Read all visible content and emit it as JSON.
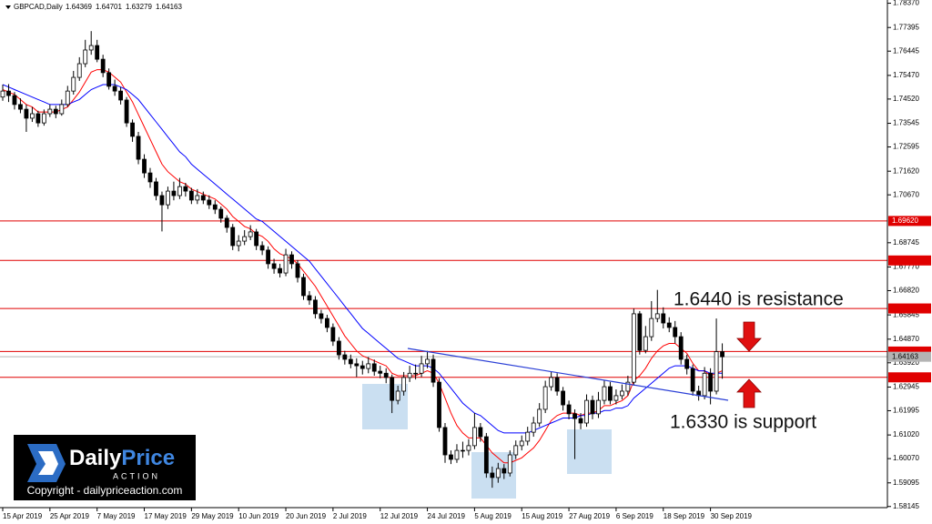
{
  "chart_data": {
    "type": "candlestick",
    "symbol": "GBPCAD,Daily",
    "bull_color": "#ffffff",
    "bear_color": "#000000",
    "ylim": [
      1.581,
      1.785
    ],
    "yticks": [
      {
        "value": 1.7837,
        "label": "1.78370"
      },
      1.77395,
      1.76445,
      {
        "value": 1.7547,
        "label": "1.75470"
      },
      {
        "value": 1.7452,
        "label": "1.74520"
      },
      1.73545,
      1.72595,
      {
        "value": 1.7162,
        "label": "1.71620"
      },
      {
        "value": 1.7067,
        "label": "1.70670"
      },
      1.68745,
      {
        "value": 1.6777,
        "label": "1.67770"
      },
      {
        "value": 1.6682,
        "label": "1.66820"
      },
      1.65845,
      {
        "value": 1.6487,
        "label": "1.64870"
      },
      {
        "value": 1.6392,
        "label": "1.63920"
      },
      1.62945,
      1.61995,
      {
        "value": 1.6102,
        "label": "1.61020"
      },
      {
        "value": 1.6007,
        "label": "1.60070"
      },
      1.59095,
      1.58145
    ],
    "categories": [
      "15 Apr 2019",
      null,
      null,
      null,
      null,
      null,
      null,
      null,
      "25 Apr 2019",
      null,
      null,
      null,
      null,
      null,
      null,
      null,
      "7 May 2019",
      null,
      null,
      null,
      null,
      null,
      null,
      null,
      "17 May 2019",
      null,
      null,
      null,
      null,
      null,
      null,
      null,
      "29 May 2019",
      null,
      null,
      null,
      null,
      null,
      null,
      null,
      "10 Jun 2019",
      null,
      null,
      null,
      null,
      null,
      null,
      null,
      "20 Jun 2019",
      null,
      null,
      null,
      null,
      null,
      null,
      null,
      "2 Jul 2019",
      null,
      null,
      null,
      null,
      null,
      null,
      null,
      "12 Jul 2019",
      null,
      null,
      null,
      null,
      null,
      null,
      null,
      "24 Jul 2019",
      null,
      null,
      null,
      null,
      null,
      null,
      null,
      "5 Aug 2019",
      null,
      null,
      null,
      null,
      null,
      null,
      null,
      "15 Aug 2019",
      null,
      null,
      null,
      null,
      null,
      null,
      null,
      "27 Aug 2019",
      null,
      null,
      null,
      null,
      null,
      null,
      null,
      "6 Sep 2019",
      null,
      null,
      null,
      null,
      null,
      null,
      null,
      "18 Sep 2019",
      null,
      null,
      null,
      null,
      null,
      null,
      null,
      "30 Sep 2019",
      null,
      null
    ],
    "ohlc": [
      [
        1.746,
        1.751,
        1.7445,
        1.7484
      ],
      [
        1.7484,
        1.7512,
        1.744,
        1.7466
      ],
      [
        1.7466,
        1.748,
        1.741,
        1.743
      ],
      [
        1.743,
        1.7455,
        1.7395,
        1.7411
      ],
      [
        1.7411,
        1.743,
        1.732,
        1.7375
      ],
      [
        1.7375,
        1.742,
        1.736,
        1.7393
      ],
      [
        1.7393,
        1.7405,
        1.734,
        1.7356
      ],
      [
        1.7356,
        1.741,
        1.7345,
        1.7393
      ],
      [
        1.7393,
        1.743,
        1.738,
        1.7411
      ],
      [
        1.7411,
        1.7425,
        1.7375,
        1.7393
      ],
      [
        1.7393,
        1.745,
        1.7385,
        1.743
      ],
      [
        1.743,
        1.7505,
        1.742,
        1.7484
      ],
      [
        1.7484,
        1.7565,
        1.747,
        1.7539
      ],
      [
        1.7539,
        1.762,
        1.7525,
        1.7594
      ],
      [
        1.7594,
        1.769,
        1.758,
        1.7649
      ],
      [
        1.7649,
        1.7725,
        1.763,
        1.7667
      ],
      [
        1.7667,
        1.769,
        1.76,
        1.7612
      ],
      [
        1.7612,
        1.763,
        1.754,
        1.7558
      ],
      [
        1.7558,
        1.7575,
        1.749,
        1.7503
      ],
      [
        1.7503,
        1.753,
        1.7465,
        1.7484
      ],
      [
        1.7484,
        1.75,
        1.743,
        1.7448
      ],
      [
        1.7448,
        1.746,
        1.734,
        1.7356
      ],
      [
        1.7356,
        1.737,
        1.728,
        1.7302
      ],
      [
        1.7302,
        1.732,
        1.719,
        1.721
      ],
      [
        1.721,
        1.723,
        1.7135,
        1.7155
      ],
      [
        1.7155,
        1.7175,
        1.7095,
        1.7119
      ],
      [
        1.7119,
        1.7135,
        1.7045,
        1.7064
      ],
      [
        1.7064,
        1.708,
        1.692,
        1.7027
      ],
      [
        1.7027,
        1.71,
        1.701,
        1.7082
      ],
      [
        1.7082,
        1.712,
        1.7045,
        1.7064
      ],
      [
        1.7064,
        1.7135,
        1.705,
        1.71
      ],
      [
        1.71,
        1.7115,
        1.706,
        1.7082
      ],
      [
        1.7082,
        1.7095,
        1.703,
        1.7046
      ],
      [
        1.7046,
        1.709,
        1.703,
        1.7064
      ],
      [
        1.7064,
        1.708,
        1.703,
        1.7046
      ],
      [
        1.7046,
        1.7065,
        1.701,
        1.7027
      ],
      [
        1.7027,
        1.7045,
        1.699,
        1.7009
      ],
      [
        1.7009,
        1.702,
        1.6955,
        1.6973
      ],
      [
        1.6973,
        1.6985,
        1.6915,
        1.6936
      ],
      [
        1.6936,
        1.695,
        1.6845,
        1.6863
      ],
      [
        1.6863,
        1.6905,
        1.684,
        1.6881
      ],
      [
        1.6881,
        1.6925,
        1.6865,
        1.6899
      ],
      [
        1.6899,
        1.6945,
        1.6885,
        1.6918
      ],
      [
        1.6918,
        1.693,
        1.6845,
        1.6863
      ],
      [
        1.6863,
        1.688,
        1.6825,
        1.6845
      ],
      [
        1.6845,
        1.686,
        1.677,
        1.679
      ],
      [
        1.679,
        1.681,
        1.675,
        1.6771
      ],
      [
        1.6771,
        1.679,
        1.6735,
        1.6753
      ],
      [
        1.6753,
        1.685,
        1.674,
        1.6826
      ],
      [
        1.6826,
        1.684,
        1.677,
        1.679
      ],
      [
        1.679,
        1.6805,
        1.6715,
        1.6735
      ],
      [
        1.6735,
        1.675,
        1.6645,
        1.6662
      ],
      [
        1.6662,
        1.668,
        1.6625,
        1.6644
      ],
      [
        1.6644,
        1.666,
        1.657,
        1.6589
      ],
      [
        1.6589,
        1.6605,
        1.655,
        1.657
      ],
      [
        1.657,
        1.6585,
        1.6515,
        1.6534
      ],
      [
        1.6534,
        1.655,
        1.646,
        1.6479
      ],
      [
        1.6479,
        1.6495,
        1.6405,
        1.6424
      ],
      [
        1.6424,
        1.644,
        1.6385,
        1.6406
      ],
      [
        1.6406,
        1.6425,
        1.637,
        1.6388
      ],
      [
        1.6388,
        1.641,
        1.6335,
        1.638
      ],
      [
        1.638,
        1.64,
        1.6345,
        1.6369
      ],
      [
        1.6369,
        1.6415,
        1.635,
        1.6388
      ],
      [
        1.6388,
        1.6405,
        1.634,
        1.6358
      ],
      [
        1.6358,
        1.638,
        1.633,
        1.635
      ],
      [
        1.635,
        1.637,
        1.631,
        1.6333
      ],
      [
        1.6333,
        1.6345,
        1.619,
        1.6241
      ],
      [
        1.6241,
        1.63,
        1.6225,
        1.6278
      ],
      [
        1.6278,
        1.6355,
        1.626,
        1.6333
      ],
      [
        1.6333,
        1.638,
        1.6315,
        1.635
      ],
      [
        1.635,
        1.6385,
        1.6325,
        1.635
      ],
      [
        1.635,
        1.642,
        1.6335,
        1.6388
      ],
      [
        1.6388,
        1.644,
        1.637,
        1.6406
      ],
      [
        1.6406,
        1.6425,
        1.6295,
        1.6314
      ],
      [
        1.6314,
        1.633,
        1.6115,
        1.6132
      ],
      [
        1.6132,
        1.615,
        1.599,
        1.6022
      ],
      [
        1.6022,
        1.604,
        1.5985,
        1.6004
      ],
      [
        1.6004,
        1.6065,
        1.599,
        1.604
      ],
      [
        1.604,
        1.6075,
        1.601,
        1.604
      ],
      [
        1.604,
        1.6085,
        1.602,
        1.6059
      ],
      [
        1.6059,
        1.619,
        1.6045,
        1.6132
      ],
      [
        1.6132,
        1.615,
        1.6075,
        1.6095
      ],
      [
        1.6095,
        1.611,
        1.593,
        1.5949
      ],
      [
        1.5949,
        1.5975,
        1.589,
        1.5931
      ],
      [
        1.5931,
        1.599,
        1.591,
        1.5967
      ],
      [
        1.5967,
        1.5985,
        1.5925,
        1.5949
      ],
      [
        1.5949,
        1.604,
        1.5935,
        1.6022
      ],
      [
        1.6022,
        1.608,
        1.6005,
        1.6059
      ],
      [
        1.6059,
        1.61,
        1.604,
        1.6077
      ],
      [
        1.6077,
        1.6135,
        1.606,
        1.6113
      ],
      [
        1.6113,
        1.6175,
        1.6095,
        1.615
      ],
      [
        1.615,
        1.623,
        1.6135,
        1.6205
      ],
      [
        1.6205,
        1.632,
        1.619,
        1.6296
      ],
      [
        1.6296,
        1.6355,
        1.628,
        1.6333
      ],
      [
        1.6333,
        1.635,
        1.626,
        1.6278
      ],
      [
        1.6278,
        1.6295,
        1.62,
        1.6223
      ],
      [
        1.6223,
        1.624,
        1.6165,
        1.6187
      ],
      [
        1.6187,
        1.6205,
        1.6005,
        1.6168
      ],
      [
        1.6168,
        1.619,
        1.6125,
        1.615
      ],
      [
        1.615,
        1.6265,
        1.6135,
        1.6241
      ],
      [
        1.6241,
        1.626,
        1.6165,
        1.6187
      ],
      [
        1.6187,
        1.6275,
        1.617,
        1.6241
      ],
      [
        1.6241,
        1.632,
        1.6225,
        1.6296
      ],
      [
        1.6296,
        1.6315,
        1.6225,
        1.6241
      ],
      [
        1.6241,
        1.6285,
        1.6225,
        1.626
      ],
      [
        1.626,
        1.6305,
        1.6245,
        1.6278
      ],
      [
        1.6278,
        1.634,
        1.626,
        1.6314
      ],
      [
        1.6314,
        1.661,
        1.63,
        1.6589
      ],
      [
        1.6589,
        1.66,
        1.6425,
        1.6442
      ],
      [
        1.6442,
        1.654,
        1.643,
        1.6497
      ],
      [
        1.6497,
        1.664,
        1.648,
        1.657
      ],
      [
        1.657,
        1.6685,
        1.6555,
        1.6589
      ],
      [
        1.6589,
        1.6615,
        1.653,
        1.6552
      ],
      [
        1.6552,
        1.6575,
        1.6515,
        1.6534
      ],
      [
        1.6534,
        1.656,
        1.647,
        1.6497
      ],
      [
        1.6497,
        1.6515,
        1.6385,
        1.6406
      ],
      [
        1.6406,
        1.6425,
        1.6345,
        1.6369
      ],
      [
        1.6369,
        1.6385,
        1.626,
        1.6278
      ],
      [
        1.6278,
        1.63,
        1.624,
        1.626
      ],
      [
        1.626,
        1.6375,
        1.6245,
        1.635
      ],
      [
        1.635,
        1.637,
        1.6225,
        1.6278
      ],
      [
        1.6278,
        1.657,
        1.6265,
        1.6437
      ],
      [
        1.64369,
        1.64701,
        1.63279,
        1.64163
      ]
    ],
    "indicators": [
      {
        "color": "#ff0000",
        "values": [
          1.749,
          1.748,
          1.747,
          1.745,
          1.743,
          1.742,
          1.74,
          1.74,
          1.74,
          1.74,
          1.741,
          1.742,
          1.745,
          1.748,
          1.752,
          1.756,
          1.757,
          1.757,
          1.756,
          1.754,
          1.752,
          1.748,
          1.744,
          1.739,
          1.734,
          1.729,
          1.724,
          1.719,
          1.716,
          1.714,
          1.712,
          1.711,
          1.709,
          1.708,
          1.707,
          1.706,
          1.705,
          1.703,
          1.701,
          1.698,
          1.696,
          1.694,
          1.693,
          1.691,
          1.69,
          1.688,
          1.685,
          1.683,
          1.682,
          1.681,
          1.679,
          1.676,
          1.673,
          1.67,
          1.666,
          1.662,
          1.658,
          1.654,
          1.65,
          1.647,
          1.644,
          1.642,
          1.641,
          1.64,
          1.639,
          1.638,
          1.635,
          1.634,
          1.634,
          1.634,
          1.634,
          1.635,
          1.636,
          1.635,
          1.631,
          1.625,
          1.619,
          1.614,
          1.611,
          1.609,
          1.609,
          1.609,
          1.606,
          1.603,
          1.601,
          1.599,
          1.599,
          1.6,
          1.601,
          1.603,
          1.605,
          1.608,
          1.612,
          1.616,
          1.618,
          1.619,
          1.619,
          1.619,
          1.618,
          1.619,
          1.619,
          1.62,
          1.622,
          1.622,
          1.623,
          1.624,
          1.626,
          1.632,
          1.634,
          1.637,
          1.641,
          1.644,
          1.646,
          1.647,
          1.647,
          1.645,
          1.643,
          1.639,
          1.636,
          1.636,
          1.634,
          1.635,
          1.636
        ]
      },
      {
        "color": "#0000ff",
        "values": [
          1.751,
          1.75,
          1.749,
          1.748,
          1.747,
          1.746,
          1.745,
          1.744,
          1.743,
          1.743,
          1.743,
          1.743,
          1.744,
          1.745,
          1.747,
          1.749,
          1.75,
          1.751,
          1.751,
          1.751,
          1.75,
          1.749,
          1.747,
          1.745,
          1.742,
          1.739,
          1.736,
          1.733,
          1.73,
          1.727,
          1.724,
          1.722,
          1.719,
          1.717,
          1.715,
          1.713,
          1.711,
          1.709,
          1.707,
          1.705,
          1.703,
          1.701,
          1.699,
          1.697,
          1.696,
          1.694,
          1.692,
          1.69,
          1.688,
          1.686,
          1.684,
          1.682,
          1.68,
          1.677,
          1.674,
          1.671,
          1.668,
          1.665,
          1.662,
          1.659,
          1.656,
          1.653,
          1.651,
          1.649,
          1.647,
          1.645,
          1.643,
          1.641,
          1.64,
          1.639,
          1.638,
          1.638,
          1.638,
          1.637,
          1.635,
          1.632,
          1.629,
          1.626,
          1.623,
          1.621,
          1.619,
          1.618,
          1.616,
          1.614,
          1.612,
          1.611,
          1.611,
          1.611,
          1.611,
          1.611,
          1.612,
          1.613,
          1.614,
          1.615,
          1.616,
          1.617,
          1.617,
          1.617,
          1.618,
          1.618,
          1.619,
          1.619,
          1.62,
          1.62,
          1.621,
          1.621,
          1.622,
          1.625,
          1.627,
          1.629,
          1.631,
          1.633,
          1.635,
          1.637,
          1.638,
          1.638,
          1.638,
          1.637,
          1.636,
          1.636,
          1.635,
          1.635,
          1.635
        ]
      }
    ],
    "levels": [
      {
        "value": 1.6962,
        "label": "1.69620",
        "color": "#e00000"
      },
      {
        "value": 1.68033,
        "color": "#e00000"
      },
      {
        "value": 1.66104,
        "color": "#e00000"
      },
      {
        "value": 1.64373,
        "color": "#e00000"
      },
      {
        "value": 1.63336,
        "color": "#e00000"
      }
    ],
    "current_price_color": "#b4b4b4",
    "annotations": [
      "1.6440 is resistance",
      "1.6330 is support"
    ],
    "watermark": {
      "brand_1": "Daily",
      "brand_2": "Price",
      "tagline": "ACTION",
      "copyright": "Copyright - dailypriceaction.com"
    }
  }
}
